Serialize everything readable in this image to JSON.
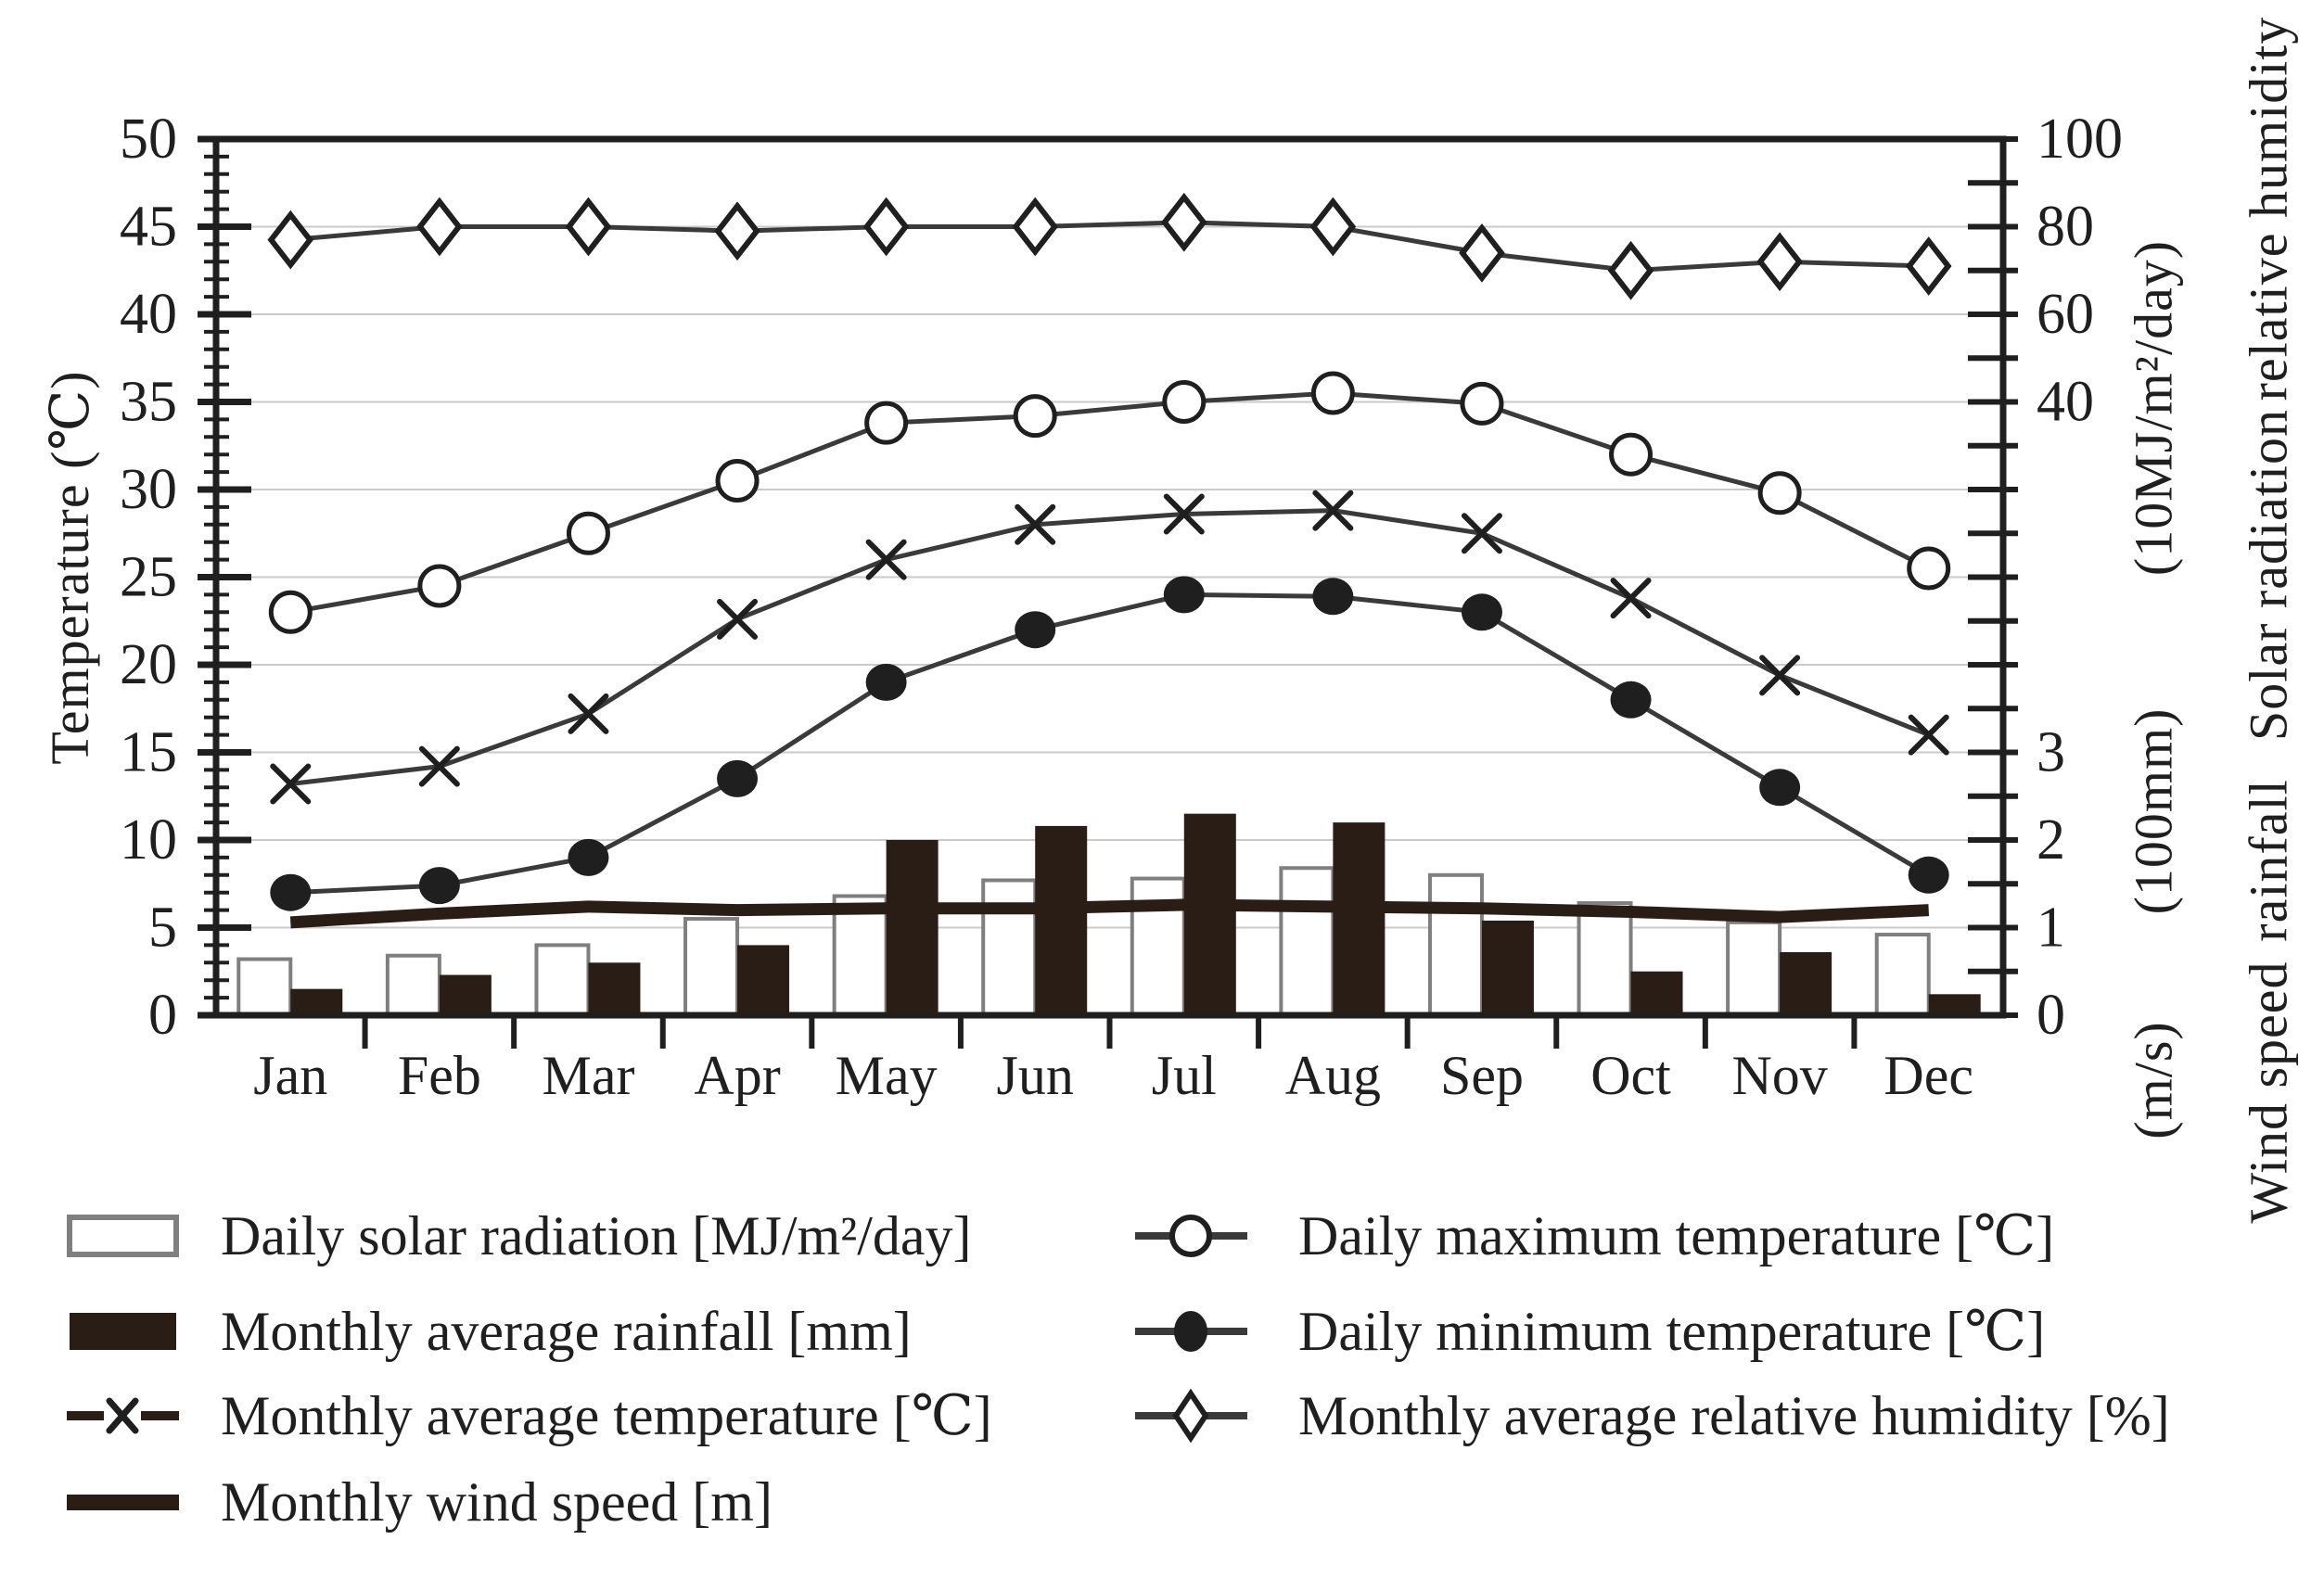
{
  "figure": {
    "background": "#ffffff",
    "ink": "#1f1f1f",
    "series_line": "#3a3a3a",
    "dark_fill": "#2a1d16",
    "open_bar_stroke": "#7f7f7f",
    "gridline": "#cacaca"
  },
  "chart_data": {
    "type": "combo",
    "categories": [
      "Jan",
      "Feb",
      "Mar",
      "Apr",
      "May",
      "Jun",
      "Jul",
      "Aug",
      "Sep",
      "Oct",
      "Nov",
      "Dec"
    ],
    "series": [
      {
        "name": "Daily solar radiation [MJ/m²/day]",
        "type": "bar",
        "variant": "open",
        "scale": "solar",
        "axis": "Solar radiation (10MJ/m²/day), right",
        "values": [
          0.64,
          0.68,
          0.8,
          1.1,
          1.36,
          1.54,
          1.56,
          1.68,
          1.6,
          1.28,
          1.06,
          0.92
        ]
      },
      {
        "name": "Monthly average rainfall [mm]",
        "type": "bar",
        "variant": "filled",
        "scale": "rain",
        "axis": "rainfall (100mm), right",
        "values": [
          30,
          46,
          60,
          80,
          200,
          216,
          230,
          220,
          108,
          50,
          72,
          24
        ]
      },
      {
        "name": "Monthly average temperature [℃]",
        "type": "line",
        "marker": "x",
        "scale": "temp",
        "axis": "Temperature (℃), left",
        "values": [
          13.2,
          14.2,
          17.2,
          22.6,
          26.0,
          28.0,
          28.6,
          28.8,
          27.5,
          23.8,
          19.4,
          16.0
        ]
      },
      {
        "name": "Monthly wind speed [m]",
        "type": "line",
        "marker": "none",
        "scale": "wind",
        "axis": "Wind speed (m/s), right",
        "values": [
          1.06,
          1.16,
          1.24,
          1.2,
          1.22,
          1.22,
          1.26,
          1.24,
          1.22,
          1.18,
          1.12,
          1.2
        ]
      },
      {
        "name": "Daily maximum temperature [℃]",
        "type": "line",
        "marker": "circle-open",
        "scale": "temp",
        "axis": "Temperature (℃), left",
        "values": [
          23.0,
          24.5,
          27.5,
          30.5,
          33.8,
          34.2,
          35.0,
          35.5,
          34.9,
          32.0,
          29.8,
          25.5
        ]
      },
      {
        "name": "Daily minimum temperature [℃]",
        "type": "line",
        "marker": "circle-filled",
        "scale": "temp",
        "axis": "Temperature (℃), left",
        "values": [
          7.0,
          7.4,
          9.0,
          13.5,
          19.0,
          22.0,
          24.0,
          23.9,
          23.0,
          18.0,
          13.0,
          8.0
        ]
      },
      {
        "name": "Monthly average relative humidity [%]",
        "type": "line",
        "marker": "diamond-open",
        "scale": "hum",
        "axis": "relative humidity (%), right",
        "values": [
          77,
          80,
          80,
          79,
          80,
          80,
          81,
          80,
          74,
          70,
          72,
          71
        ]
      }
    ],
    "title": "",
    "xlabel": "",
    "ylabel_left": "Temperature (℃)",
    "left_axis": {
      "min": 0,
      "max": 50,
      "major_step": 5,
      "minor_step": 1,
      "grid": true
    },
    "right_axis_scales": {
      "relative_humidity": "100% at 50℃-level, 20% per 5 units (labels 100/80/60/40)",
      "solar_radiation": "1 (10MJ/m²/day) per 5 units (labels 3/2/1/0)",
      "rainfall": "1 (100mm) per 5 units",
      "wind_speed": "1 (m/s) per 5 units"
    },
    "legend_position": "below chart, two columns"
  },
  "axes": {
    "left_title": "Temperature (℃)",
    "left_tick_labels": [
      "0",
      "5",
      "10",
      "15",
      "20",
      "25",
      "30",
      "35",
      "40",
      "45",
      "50"
    ],
    "right_upper_labels": [
      {
        "text": "100",
        "at": 50
      },
      {
        "text": "80",
        "at": 45
      },
      {
        "text": "60",
        "at": 40
      },
      {
        "text": "40",
        "at": 35
      }
    ],
    "right_lower_labels": [
      {
        "text": "3",
        "at": 15
      },
      {
        "text": "2",
        "at": 10
      },
      {
        "text": "1",
        "at": 5
      },
      {
        "text": "0",
        "at": 0
      }
    ],
    "months": [
      "Jan",
      "Feb",
      "Mar",
      "Apr",
      "May",
      "Jun",
      "Jul",
      "Aug",
      "Sep",
      "Oct",
      "Nov",
      "Dec"
    ]
  },
  "right_captions": {
    "humidity_name": "relative humidity",
    "solar_unit": "(10MJ/m²/day)",
    "solar_name": "Solar radiation",
    "rain_unit": "(100mm)",
    "rain_name": "rainfall",
    "wind_unit": "(m/s)",
    "wind_name": "Wind speed"
  },
  "legend": {
    "left": [
      {
        "label": "Daily solar radiation [MJ/m²/day]"
      },
      {
        "label": "Monthly average rainfall [mm]"
      },
      {
        "label": "Monthly average temperature [℃]"
      },
      {
        "label": "Monthly wind speed [m]"
      }
    ],
    "right": [
      {
        "label": "Daily maximum temperature [℃]"
      },
      {
        "label": "Daily minimum temperature [℃]"
      },
      {
        "label": "Monthly average relative humidity [%]"
      }
    ]
  }
}
